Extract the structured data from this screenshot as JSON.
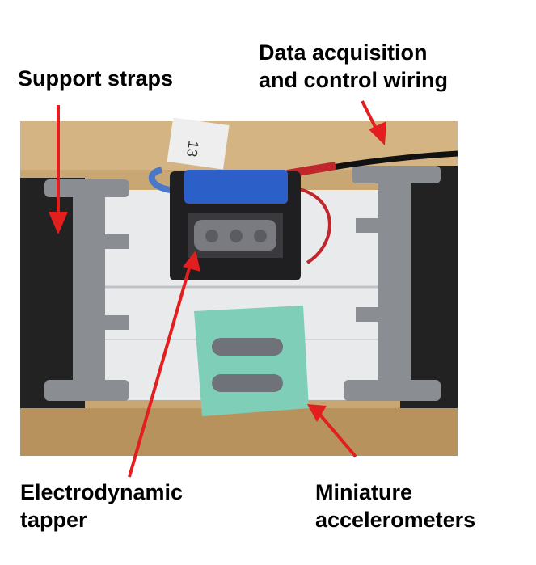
{
  "figure": {
    "labels": {
      "support_straps": "Support straps",
      "data_acquisition": "Data acquisition\nand control wiring",
      "electrodynamic_tapper": "Electrodynamic\ntapper",
      "miniature_accelerometers": "Miniature\naccelerometers"
    },
    "photo_tag_text": "13"
  },
  "colors": {
    "arrow": "#e31e1e",
    "wood": "#c9a775",
    "strap": "#222222",
    "bracket": "#8a8d92",
    "foam": "#2d5fc9",
    "accelerometer_block": "#7fcfb8",
    "accelerometer_bar": "#6f7278"
  }
}
